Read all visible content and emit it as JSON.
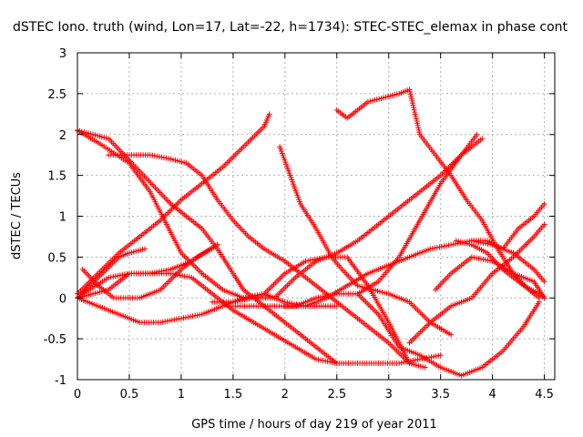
{
  "chart_data": {
    "type": "scatter",
    "title": "dSTEC Iono. truth (wind, Lon=17, Lat=-22, h=1734): STEC-STEC_elemax in phase cont",
    "xlabel": "GPS time / hours of day 219 of year 2011",
    "ylabel": "dSTEC  / TECUs",
    "xlim": [
      0,
      4.6
    ],
    "ylim": [
      -1,
      3
    ],
    "xticks": [
      "0",
      "0.5",
      "1",
      "1.5",
      "2",
      "2.5",
      "3",
      "3.5",
      "4",
      "4.5"
    ],
    "yticks": [
      "-1",
      "-0.5",
      "0",
      "0.5",
      "1",
      "1.5",
      "2",
      "2.5",
      "3"
    ],
    "grid": true,
    "marker": "+",
    "color": "#ff0000",
    "series": [
      {
        "x": [
          0.0,
          0.2,
          0.5,
          0.7,
          0.9,
          1.0,
          1.2,
          1.4,
          1.6,
          1.8,
          2.0,
          2.2,
          2.5
        ],
        "y": [
          2.05,
          1.9,
          1.65,
          1.3,
          0.8,
          0.55,
          0.3,
          0.1,
          0.0,
          0.05,
          -0.05,
          -0.1,
          -0.1
        ]
      },
      {
        "x": [
          0.0,
          0.15,
          0.3,
          0.45,
          0.6,
          0.75,
          0.9,
          1.05,
          1.2,
          1.35,
          1.5,
          1.6,
          1.7,
          1.85,
          2.0,
          2.2,
          2.4,
          2.5
        ],
        "y": [
          2.05,
          2.0,
          1.95,
          1.75,
          1.55,
          1.35,
          1.15,
          1.0,
          0.85,
          0.6,
          0.3,
          0.1,
          0.0,
          -0.15,
          -0.3,
          -0.5,
          -0.7,
          -0.8
        ]
      },
      {
        "x": [
          0.3,
          0.5,
          0.7,
          0.9,
          1.05,
          1.2,
          1.35,
          1.5,
          1.65,
          1.8,
          2.0,
          2.2,
          2.4,
          2.6,
          2.8,
          3.0,
          3.2,
          3.35
        ],
        "y": [
          1.75,
          1.75,
          1.75,
          1.7,
          1.65,
          1.5,
          1.2,
          0.95,
          0.75,
          0.6,
          0.45,
          0.25,
          0.05,
          -0.15,
          -0.35,
          -0.55,
          -0.8,
          -0.85
        ]
      },
      {
        "x": [
          0.0,
          0.2,
          0.4,
          0.6,
          0.8,
          1.0,
          1.2,
          1.4,
          1.6,
          1.8,
          2.0,
          2.2,
          2.4,
          2.6,
          2.8,
          3.0,
          3.2
        ],
        "y": [
          0.0,
          -0.1,
          -0.2,
          -0.3,
          -0.3,
          -0.25,
          -0.2,
          -0.1,
          0.0,
          0.05,
          0.3,
          0.45,
          0.5,
          0.5,
          0.15,
          -0.3,
          -0.8
        ]
      },
      {
        "x": [
          0.05,
          0.3,
          0.5,
          0.7,
          0.9,
          1.1,
          1.3,
          1.5,
          1.7,
          1.9,
          2.1,
          2.3,
          2.5,
          2.7,
          2.9,
          3.1,
          3.3,
          3.5
        ],
        "y": [
          0.05,
          0.25,
          0.3,
          0.3,
          0.3,
          0.25,
          0.05,
          -0.15,
          -0.3,
          -0.45,
          -0.6,
          -0.75,
          -0.8,
          -0.8,
          -0.8,
          -0.8,
          -0.75,
          -0.7
        ]
      },
      {
        "x": [
          0.0,
          0.2,
          0.4,
          0.6,
          0.8,
          1.0,
          1.2,
          1.4,
          1.6,
          1.8,
          1.85
        ],
        "y": [
          0.05,
          0.3,
          0.55,
          0.75,
          0.95,
          1.2,
          1.4,
          1.6,
          1.85,
          2.1,
          2.25
        ]
      },
      {
        "x": [
          0.0,
          0.3,
          0.5,
          0.7,
          0.9,
          1.1,
          1.35
        ],
        "y": [
          0.0,
          0.1,
          0.3,
          0.3,
          0.35,
          0.45,
          0.65
        ]
      },
      {
        "x": [
          0.0,
          0.2,
          0.4,
          0.5,
          0.65
        ],
        "y": [
          0.0,
          0.25,
          0.5,
          0.55,
          0.6
        ]
      },
      {
        "x": [
          0.05,
          0.2,
          0.35,
          0.6,
          0.8,
          1.0,
          1.15,
          1.35
        ],
        "y": [
          0.35,
          0.15,
          0.0,
          0.0,
          0.1,
          0.35,
          0.5,
          0.65
        ]
      },
      {
        "x": [
          1.95,
          2.05,
          2.15,
          2.3,
          2.45,
          2.55,
          2.7,
          2.85,
          3.0,
          3.2,
          3.4,
          3.6
        ],
        "y": [
          1.85,
          1.5,
          1.15,
          0.85,
          0.5,
          0.35,
          0.15,
          0.1,
          0.05,
          -0.05,
          -0.3,
          -0.45
        ]
      },
      {
        "x": [
          2.5,
          2.6,
          2.7,
          2.8,
          2.95,
          3.1,
          3.2,
          3.3,
          3.45,
          3.6,
          3.75,
          3.9,
          4.05,
          4.2,
          4.35,
          4.45
        ],
        "y": [
          2.3,
          2.2,
          2.3,
          2.4,
          2.45,
          2.5,
          2.55,
          2.0,
          1.75,
          1.5,
          1.2,
          0.95,
          0.6,
          0.3,
          0.1,
          0.0
        ]
      },
      {
        "x": [
          1.5,
          1.7,
          1.9,
          2.1,
          2.3,
          2.5,
          2.7,
          2.9,
          3.1,
          3.3,
          3.5,
          3.7,
          3.85
        ],
        "y": [
          -0.1,
          -0.1,
          -0.1,
          -0.1,
          0.0,
          0.05,
          0.05,
          0.2,
          0.5,
          0.95,
          1.4,
          1.75,
          2.0
        ]
      },
      {
        "x": [
          1.3,
          1.5,
          1.7,
          1.9,
          2.1,
          2.3,
          2.5,
          2.7,
          2.9,
          3.1,
          3.3,
          3.5,
          3.7,
          3.9
        ],
        "y": [
          -0.05,
          -0.05,
          0.0,
          0.0,
          0.25,
          0.45,
          0.55,
          0.7,
          0.9,
          1.1,
          1.3,
          1.5,
          1.75,
          1.95
        ]
      },
      {
        "x": [
          2.0,
          2.2,
          2.4,
          2.6,
          2.8,
          3.0,
          3.2,
          3.4,
          3.6,
          3.8,
          4.0,
          4.2,
          4.4,
          4.5
        ],
        "y": [
          -0.1,
          -0.1,
          0.0,
          0.15,
          0.3,
          0.4,
          0.5,
          0.6,
          0.65,
          0.7,
          0.65,
          0.55,
          0.35,
          0.2
        ]
      },
      {
        "x": [
          2.7,
          2.9,
          3.1,
          3.3,
          3.5,
          3.7,
          3.9,
          4.1,
          4.3,
          4.45
        ],
        "y": [
          0.05,
          -0.2,
          -0.6,
          -0.7,
          -0.85,
          -0.95,
          -0.85,
          -0.65,
          -0.35,
          -0.05
        ]
      },
      {
        "x": [
          3.2,
          3.4,
          3.6,
          3.8,
          4.0,
          4.2,
          4.4,
          4.5
        ],
        "y": [
          -0.55,
          -0.3,
          -0.1,
          0.0,
          0.3,
          0.5,
          0.75,
          0.9
        ]
      },
      {
        "x": [
          3.65,
          3.8,
          3.95,
          4.1,
          4.3,
          4.45,
          4.5
        ],
        "y": [
          0.7,
          0.65,
          0.55,
          0.35,
          0.15,
          0.05,
          0.0
        ]
      },
      {
        "x": [
          3.8,
          3.95,
          4.1,
          4.25,
          4.4,
          4.5
        ],
        "y": [
          0.7,
          0.7,
          0.6,
          0.85,
          1.0,
          1.15
        ]
      },
      {
        "x": [
          3.45,
          3.6,
          3.8,
          4.0,
          4.2,
          4.4,
          4.5
        ],
        "y": [
          0.1,
          0.3,
          0.5,
          0.45,
          0.3,
          0.2,
          0.0
        ]
      }
    ]
  }
}
